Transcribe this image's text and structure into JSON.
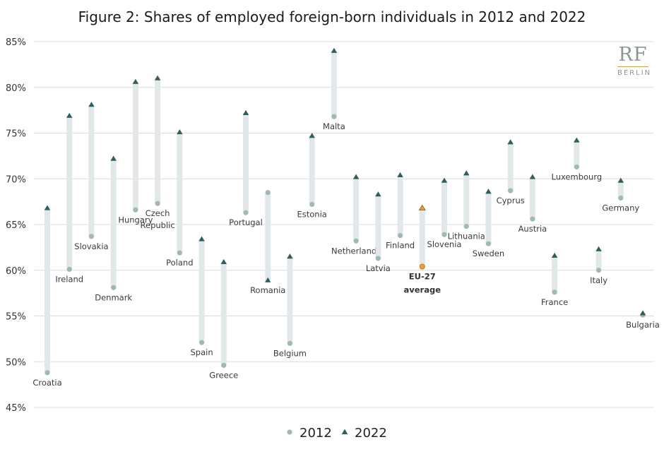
{
  "chart_data": {
    "type": "scatter",
    "title": "Figure 2: Shares of employed foreign-born individuals in 2012 and 2022",
    "ylim": [
      45,
      85
    ],
    "yticks": [
      45,
      50,
      55,
      60,
      65,
      70,
      75,
      80,
      85
    ],
    "ytick_suffix": "%",
    "grid": true,
    "legend_position": "bottom-center",
    "series": [
      {
        "name": "2012",
        "marker": "circle",
        "color": "#9fb9b5"
      },
      {
        "name": "2022",
        "marker": "triangle",
        "color": "#2f5f5c"
      }
    ],
    "highlight_color": "#e0a43a",
    "countries": [
      {
        "label": "Croatia",
        "v2012": 48.8,
        "v2022": 66.8,
        "label_pos": "below"
      },
      {
        "label": "Ireland",
        "v2012": 60.1,
        "v2022": 76.9,
        "label_pos": "below"
      },
      {
        "label": "Slovakia",
        "v2012": 63.7,
        "v2022": 78.1,
        "label_pos": "below"
      },
      {
        "label": "Denmark",
        "v2012": 58.1,
        "v2022": 72.2,
        "label_pos": "below"
      },
      {
        "label": "Hungary",
        "v2012": 66.6,
        "v2022": 80.6,
        "label_pos": "below"
      },
      {
        "label": "Czech Republic",
        "label_lines": [
          "Czech",
          "Republic"
        ],
        "v2012": 67.3,
        "v2022": 81.0,
        "label_pos": "below"
      },
      {
        "label": "Poland",
        "v2012": 61.9,
        "v2022": 75.1,
        "label_pos": "below"
      },
      {
        "label": "Spain",
        "v2012": 52.1,
        "v2022": 63.4,
        "label_pos": "below"
      },
      {
        "label": "Greece",
        "v2012": 49.6,
        "v2022": 60.9,
        "label_pos": "below"
      },
      {
        "label": "Portugal",
        "v2012": 66.3,
        "v2022": 77.2,
        "label_pos": "below"
      },
      {
        "label": "Romania",
        "v2012": 68.5,
        "v2022": 58.9,
        "label_pos": "below"
      },
      {
        "label": "Belgium",
        "v2012": 52.0,
        "v2022": 61.5,
        "label_pos": "below"
      },
      {
        "label": "Estonia",
        "v2012": 67.2,
        "v2022": 74.7,
        "label_pos": "below"
      },
      {
        "label": "Malta",
        "v2012": 76.8,
        "v2022": 84.0,
        "label_pos": "below"
      },
      {
        "label": "Netherlands",
        "v2012": 63.2,
        "v2022": 70.2,
        "label_pos": "below"
      },
      {
        "label": "Latvia",
        "v2012": 61.3,
        "v2022": 68.3,
        "label_pos": "below"
      },
      {
        "label": "Finland",
        "v2012": 63.8,
        "v2022": 70.4,
        "label_pos": "below"
      },
      {
        "label": "EU-27 average",
        "label_lines": [
          "EU-27",
          "average"
        ],
        "v2012": 60.4,
        "v2022": 66.8,
        "label_pos": "below",
        "highlight": true
      },
      {
        "label": "Slovenia",
        "v2012": 63.9,
        "v2022": 69.8,
        "label_pos": "below"
      },
      {
        "label": "Lithuania",
        "v2012": 64.8,
        "v2022": 70.6,
        "label_pos": "below"
      },
      {
        "label": "Sweden",
        "v2012": 62.9,
        "v2022": 68.6,
        "label_pos": "below"
      },
      {
        "label": "Cyprus",
        "v2012": 68.7,
        "v2022": 74.0,
        "label_pos": "below"
      },
      {
        "label": "Austria",
        "v2012": 65.6,
        "v2022": 70.2,
        "label_pos": "below"
      },
      {
        "label": "France",
        "v2012": 57.6,
        "v2022": 61.6,
        "label_pos": "below"
      },
      {
        "label": "Luxembourg",
        "v2012": 71.3,
        "v2022": 74.2,
        "label_pos": "below"
      },
      {
        "label": "Italy",
        "v2012": 60.0,
        "v2022": 62.3,
        "label_pos": "below"
      },
      {
        "label": "Germany",
        "v2012": 67.9,
        "v2022": 69.8,
        "label_pos": "below"
      },
      {
        "label": "Bulgaria",
        "v2012": 55.1,
        "v2022": 55.3,
        "label_pos": "below"
      }
    ]
  },
  "logo": {
    "main": "RF",
    "sub": "BERLIN"
  }
}
